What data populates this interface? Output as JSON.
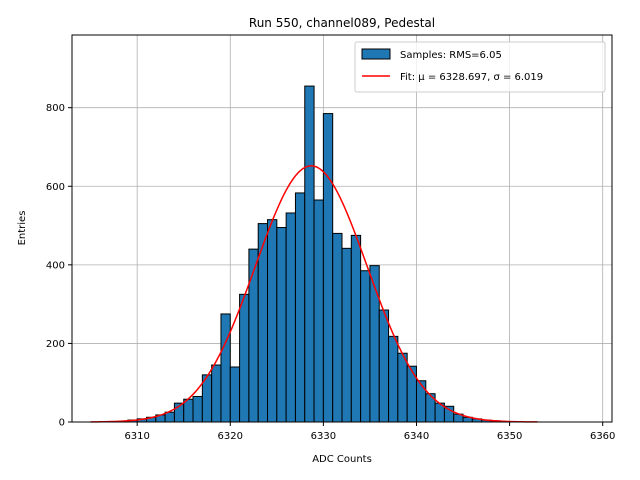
{
  "chart_data": {
    "type": "bar",
    "title": "Run 550, channel089, Pedestal",
    "xlabel": "ADC Counts",
    "ylabel": "Entries",
    "xlim": [
      6303,
      6361
    ],
    "ylim": [
      0,
      985
    ],
    "xticks": [
      6310,
      6320,
      6330,
      6340,
      6350,
      6360
    ],
    "yticks": [
      0,
      200,
      400,
      600,
      800
    ],
    "grid": true,
    "legend_position": "top-right",
    "colors": {
      "bar_fill": "#1f77b4",
      "bar_edge": "#000000",
      "fit_line": "#ff0000",
      "grid": "#b0b0b0"
    },
    "histogram": {
      "name": "Samples: RMS=6.05",
      "bin_left_edges": [
        6309,
        6310,
        6311,
        6312,
        6313,
        6314,
        6315,
        6316,
        6317,
        6318,
        6319,
        6320,
        6321,
        6322,
        6323,
        6324,
        6325,
        6326,
        6327,
        6328,
        6329,
        6330,
        6331,
        6332,
        6333,
        6334,
        6335,
        6336,
        6337,
        6338,
        6339,
        6340,
        6341,
        6342,
        6343,
        6344,
        6345,
        6346,
        6347,
        6348,
        6349
      ],
      "bin_width": 1,
      "values": [
        5,
        8,
        12,
        18,
        25,
        48,
        58,
        65,
        120,
        145,
        275,
        140,
        325,
        440,
        505,
        515,
        495,
        532,
        583,
        855,
        565,
        785,
        480,
        442,
        475,
        385,
        398,
        285,
        218,
        175,
        142,
        105,
        72,
        48,
        40,
        20,
        12,
        8,
        5,
        3,
        1
      ]
    },
    "fit": {
      "name": "Fit: μ = 6328.697, σ = 6.019",
      "mu": 6328.697,
      "sigma": 6.019,
      "amplitude": 652,
      "x_range": [
        6305,
        6353
      ]
    }
  }
}
